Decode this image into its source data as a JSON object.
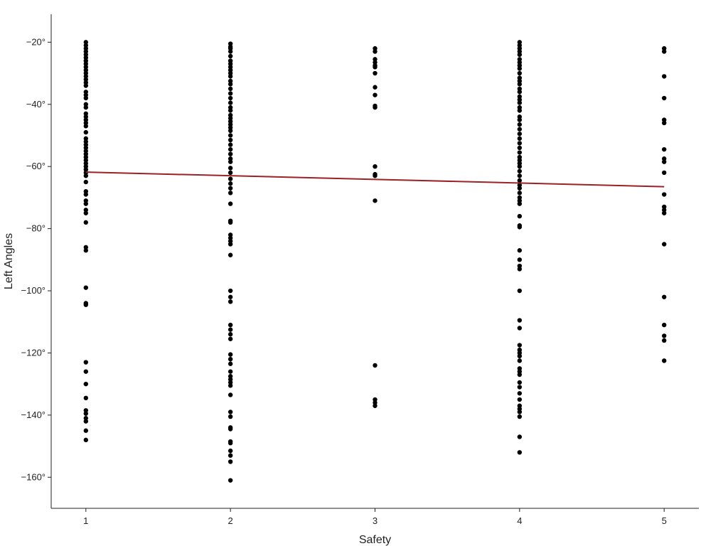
{
  "chart_data": {
    "type": "scatter",
    "xlabel": "Safety",
    "ylabel": "Left Angles",
    "x_ticks": [
      {
        "value": 1,
        "label": "1"
      },
      {
        "value": 2,
        "label": "2"
      },
      {
        "value": 3,
        "label": "3"
      },
      {
        "value": 4,
        "label": "4"
      },
      {
        "value": 5,
        "label": "5"
      }
    ],
    "y_ticks": [
      {
        "value": -20,
        "label": "−20°"
      },
      {
        "value": -40,
        "label": "−40°"
      },
      {
        "value": -60,
        "label": "−60°"
      },
      {
        "value": -80,
        "label": "−80°"
      },
      {
        "value": -100,
        "label": "−100°"
      },
      {
        "value": -120,
        "label": "−120°"
      },
      {
        "value": -140,
        "label": "−140°"
      },
      {
        "value": -160,
        "label": "−160°"
      }
    ],
    "xlim": [
      0.76,
      5.24
    ],
    "ylim": [
      -170,
      -11
    ],
    "grid": false,
    "colors": {
      "points": "#000000",
      "trend_line": "#9b2226"
    },
    "points": [
      {
        "x": 1,
        "values": [
          -20,
          -21,
          -22,
          -23,
          -24,
          -25,
          -26,
          -27,
          -28,
          -29,
          -30,
          -31,
          -32,
          -33,
          -34,
          -36,
          -37,
          -38,
          -40,
          -41,
          -43,
          -44,
          -45,
          -46,
          -47,
          -49,
          -51,
          -52,
          -53,
          -54,
          -55,
          -56,
          -57,
          -58,
          -59,
          -60,
          -61,
          -62,
          -63,
          -65,
          -68,
          -69,
          -71,
          -72,
          -74,
          -75,
          -78,
          -86,
          -87,
          -99,
          -104,
          -104.5,
          -123,
          -126,
          -130,
          -134.5,
          -138.5,
          -139.5,
          -141,
          -142,
          -145,
          -148
        ]
      },
      {
        "x": 2,
        "values": [
          -20.5,
          -21.5,
          -22,
          -23,
          -24.5,
          -26,
          -27,
          -28,
          -29,
          -30,
          -31,
          -32.5,
          -33.5,
          -35,
          -36.5,
          -38,
          -39.5,
          -41,
          -42,
          -43.5,
          -44.5,
          -45.5,
          -46.5,
          -47.5,
          -48.5,
          -50,
          -51.5,
          -53,
          -54.5,
          -56,
          -57.5,
          -58.5,
          -60.5,
          -62,
          -64,
          -65.5,
          -67,
          -68.5,
          -72,
          -77.5,
          -78,
          -82,
          -83,
          -84,
          -85,
          -88.5,
          -100,
          -102,
          -103.5,
          -111,
          -112.5,
          -114,
          -115.5,
          -120.5,
          -122,
          -123.5,
          -126,
          -127.5,
          -128.5,
          -129.5,
          -130.5,
          -133.5,
          -139,
          -140.5,
          -144,
          -144.5,
          -148.5,
          -149,
          -151.5,
          -153,
          -155,
          -161
        ]
      },
      {
        "x": 3,
        "values": [
          -22,
          -23,
          -25.5,
          -26.5,
          -27.5,
          -28,
          -30,
          -34.5,
          -37,
          -40.5,
          -41,
          -60,
          -62.5,
          -63,
          -71,
          -124,
          -135,
          -136,
          -137
        ]
      },
      {
        "x": 4,
        "values": [
          -20,
          -21,
          -22,
          -23,
          -24,
          -25.5,
          -26.5,
          -27.5,
          -28.5,
          -30,
          -31.5,
          -32.5,
          -33.5,
          -35,
          -36,
          -37.5,
          -38.5,
          -39.5,
          -41,
          -42,
          -44,
          -45,
          -46.5,
          -48,
          -49.5,
          -51,
          -52.5,
          -54,
          -55.5,
          -57,
          -58,
          -59,
          -60,
          -61.5,
          -63,
          -64.5,
          -66,
          -67,
          -68.5,
          -70,
          -71,
          -72,
          -76,
          -79,
          -79.5,
          -87,
          -90,
          -92,
          -93,
          -100,
          -109.5,
          -112,
          -117.5,
          -119,
          -120,
          -121,
          -122.5,
          -125,
          -126,
          -127,
          -129.5,
          -131,
          -133,
          -135,
          -137,
          -138,
          -139,
          -140.5,
          -147,
          -152
        ]
      },
      {
        "x": 5,
        "values": [
          -22,
          -23,
          -31,
          -38,
          -45,
          -46,
          -54.5,
          -57.5,
          -58.5,
          -62,
          -69,
          -73,
          -74,
          -75,
          -85,
          -102,
          -111,
          -114.5,
          -116,
          -122.5
        ]
      }
    ],
    "trend_line": {
      "x": [
        1,
        5
      ],
      "y": [
        -61.8,
        -66.5
      ]
    }
  }
}
